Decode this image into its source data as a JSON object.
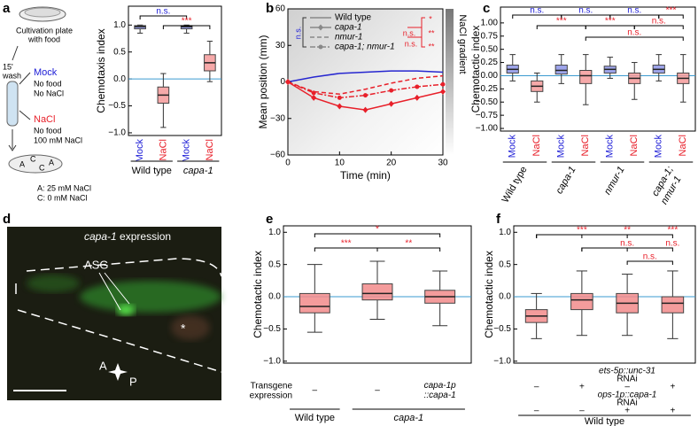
{
  "panel_labels": [
    "a",
    "b",
    "c",
    "d",
    "e",
    "f"
  ],
  "diagram_a": {
    "plate_label": [
      "Cultivation plate",
      "with food"
    ],
    "time": "15'",
    "wash": "wash",
    "mock_title": "Mock",
    "mock_lines": [
      "No food",
      "No NaCl"
    ],
    "nacl_title": "NaCl",
    "nacl_lines": [
      "No food",
      "100 mM NaCl"
    ],
    "plate_marks": [
      "A",
      "C",
      "C",
      "A"
    ],
    "legend": [
      "A: 25 mM NaCl",
      "C:   0 mM NaCl"
    ]
  },
  "image_d": {
    "title_gene": "capa-1",
    "title_rest": "expression",
    "neuron": "ASG",
    "asterisk": "*",
    "axis_a": "A",
    "axis_p": "P"
  },
  "chart_data": [
    {
      "type": "box",
      "ylabel": "Chemotaxis index",
      "categories": [
        "Mock",
        "NaCl",
        "Mock",
        "NaCl"
      ],
      "category_colors": [
        "#1c1cd6",
        "#e8202a",
        "#1c1cd6",
        "#e8202a"
      ],
      "box_colors": [
        "#8d95e8",
        "#f59a9a",
        "#8d95e8",
        "#f59a9a"
      ],
      "median": [
        0.97,
        -0.3,
        0.97,
        0.3
      ],
      "q1": [
        0.93,
        -0.45,
        0.93,
        0.15
      ],
      "q3": [
        0.99,
        -0.15,
        0.99,
        0.45
      ],
      "whisker_low": [
        0.85,
        -0.9,
        0.85,
        -0.05
      ],
      "whisker_high": [
        1.0,
        0.1,
        1.0,
        0.7
      ],
      "ylim": [
        -1.05,
        1.35
      ],
      "yticks": [
        {
          "value": -1,
          "label": "−1.0"
        },
        {
          "value": -0.5,
          "label": "−0.5"
        },
        {
          "value": 0,
          "label": "0.0"
        },
        {
          "value": 0.5,
          "label": "0.5"
        },
        {
          "value": 1,
          "label": "1.0"
        }
      ],
      "reference_line": 0,
      "reference_color": "#3b9bd0",
      "groups": [
        [
          "Wild type"
        ],
        [
          "capa-1"
        ]
      ],
      "significance": [
        {
          "text": "n.s.",
          "color": "#1c1cd6"
        },
        {
          "text": "***",
          "color": "#e8202a"
        }
      ]
    },
    {
      "type": "line",
      "ylabel": "Mean position (mm)",
      "xlabel": "Time (min)",
      "x": [
        0,
        5,
        10,
        15,
        20,
        25,
        30
      ],
      "series": [
        {
          "name": "Wild type",
          "color": "#2727d0",
          "legend_color": "#888888",
          "dash": "solid",
          "marker": "none",
          "values": [
            0,
            4,
            7,
            8,
            9,
            9,
            8
          ]
        },
        {
          "name": "capa-1",
          "color": "#e8202a",
          "legend_color": "#888888",
          "dash": "solid",
          "marker": "diamond",
          "values": [
            0,
            -13,
            -20,
            -23,
            -18,
            -13,
            -8
          ]
        },
        {
          "name": "nmur-1",
          "color": "#e8202a",
          "legend_color": "#888888",
          "dash": "dashed",
          "marker": "none",
          "values": [
            0,
            -8,
            -10,
            -6,
            -1,
            3,
            5
          ]
        },
        {
          "name": "capa-1; nmur-1",
          "color": "#e8202a",
          "legend_color": "#888888",
          "dash": "dashdot",
          "marker": "circle",
          "values": [
            0,
            -9,
            -13,
            -11,
            -7,
            -4,
            -2
          ]
        }
      ],
      "xlim": [
        0,
        30
      ],
      "xticks": [
        0,
        10,
        20,
        30
      ],
      "ylim": [
        -60,
        60
      ],
      "yticks": [
        {
          "value": -60,
          "label": "−60"
        },
        {
          "value": -30,
          "label": "−30"
        },
        0,
        30,
        60
      ],
      "gradient_label": "NaCl gradient",
      "significance": [
        {
          "text": "n.s.",
          "color": "#1c1cd6"
        },
        {
          "text": "*",
          "color": "#e8202a"
        },
        {
          "text": "**",
          "color": "#e8202a"
        },
        {
          "text": "**",
          "color": "#e8202a"
        },
        {
          "text": "n.s.",
          "color": "#e8202a"
        },
        {
          "text": "n.s.",
          "color": "#e8202a"
        }
      ]
    },
    {
      "type": "box",
      "ylabel": "Chemotactic index",
      "categories": [
        "Mock",
        "NaCl",
        "Mock",
        "NaCl",
        "Mock",
        "NaCl",
        "Mock",
        "NaCl"
      ],
      "category_colors": [
        "#1c1cd6",
        "#e8202a",
        "#1c1cd6",
        "#e8202a",
        "#1c1cd6",
        "#e8202a",
        "#1c1cd6",
        "#e8202a"
      ],
      "box_colors": [
        "#8d95e8",
        "#f59a9a",
        "#8d95e8",
        "#f59a9a",
        "#8d95e8",
        "#f59a9a",
        "#8d95e8",
        "#f59a9a"
      ],
      "median": [
        0.12,
        -0.2,
        0.1,
        0,
        0.12,
        -0.05,
        0.12,
        -0.05
      ],
      "q1": [
        0.05,
        -0.3,
        0.03,
        -0.15,
        0.05,
        -0.15,
        0.05,
        -0.15
      ],
      "q3": [
        0.2,
        -0.1,
        0.2,
        0.1,
        0.18,
        0.05,
        0.2,
        0.05
      ],
      "whisker_low": [
        -0.1,
        -0.5,
        -0.15,
        -0.55,
        -0.05,
        -0.45,
        -0.1,
        -0.5
      ],
      "whisker_high": [
        0.4,
        0.05,
        0.4,
        0.4,
        0.35,
        0.25,
        0.4,
        0.4
      ],
      "ylim": [
        -1.05,
        1.3
      ],
      "yticks": [
        {
          "value": -1,
          "label": "−1.00"
        },
        {
          "value": -0.75,
          "label": "−0.75"
        },
        {
          "value": -0.5,
          "label": "−0.50"
        },
        {
          "value": -0.25,
          "label": "−0.25"
        },
        {
          "value": 0,
          "label": "0.00"
        },
        {
          "value": 0.25,
          "label": "0.25"
        },
        {
          "value": 0.5,
          "label": "0.50"
        },
        {
          "value": 0.75,
          "label": "0.75"
        },
        {
          "value": 1,
          "label": "1.00"
        }
      ],
      "reference_line": 0,
      "reference_color": "#3b9bd0",
      "groups": [
        [
          "Wild type"
        ],
        [
          "capa-1"
        ],
        [
          "nmur-1"
        ],
        [
          "capa-1;",
          "nmur-1"
        ]
      ],
      "significance": [
        {
          "text": "n.s.",
          "color": "#1c1cd6"
        },
        {
          "text": "n.s.",
          "color": "#1c1cd6"
        },
        {
          "text": "n.s.",
          "color": "#1c1cd6"
        },
        {
          "text": "***",
          "color": "#e8202a"
        },
        {
          "text": "***",
          "color": "#e8202a"
        },
        {
          "text": "***",
          "color": "#e8202a"
        },
        {
          "text": "n.s.",
          "color": "#e8202a"
        },
        {
          "text": "n.s.",
          "color": "#e8202a"
        }
      ]
    },
    {
      "type": "box",
      "ylabel": "Chemotactic index",
      "categories": [
        null,
        null,
        null
      ],
      "box_colors": [
        "#f28b8b",
        "#f28b8b",
        "#f28b8b"
      ],
      "median": [
        -0.15,
        0.05,
        0
      ],
      "q1": [
        -0.25,
        -0.05,
        -0.1
      ],
      "q3": [
        0.05,
        0.2,
        0.1
      ],
      "whisker_low": [
        -0.55,
        -0.35,
        -0.45
      ],
      "whisker_high": [
        0.5,
        0.55,
        0.4
      ],
      "ylim": [
        -1.03,
        1.1
      ],
      "yticks": [
        {
          "value": -1,
          "label": "−1.0"
        },
        {
          "value": -0.5,
          "label": "−0.5"
        },
        {
          "value": 0,
          "label": "0.0"
        },
        {
          "value": 0.5,
          "label": "0.5"
        },
        {
          "value": 1,
          "label": "1.0"
        }
      ],
      "reference_line": 0,
      "reference_color": "#3b9bd0",
      "rows": [
        {
          "label": [
            "Transgene",
            "expression"
          ],
          "values": [
            [
              "–"
            ],
            [
              "–"
            ],
            [
              "capa-1p",
              "::capa-1"
            ]
          ]
        }
      ],
      "groups": [
        [
          "Wild type"
        ],
        [
          "capa-1"
        ]
      ],
      "significance": [
        {
          "text": "*",
          "color": "#e8202a"
        },
        {
          "text": "***",
          "color": "#e8202a"
        },
        {
          "text": "**",
          "color": "#e8202a"
        }
      ]
    },
    {
      "type": "box",
      "ylabel": "Chemotactic index",
      "categories": [
        null,
        null,
        null,
        null
      ],
      "box_colors": [
        "#f28b8b",
        "#f28b8b",
        "#f28b8b",
        "#f28b8b"
      ],
      "median": [
        -0.3,
        -0.05,
        -0.1,
        -0.1
      ],
      "q1": [
        -0.4,
        -0.2,
        -0.25,
        -0.25
      ],
      "q3": [
        -0.2,
        0.05,
        0.05,
        0
      ],
      "whisker_low": [
        -0.65,
        -0.6,
        -0.6,
        -0.65
      ],
      "whisker_high": [
        0.05,
        0.4,
        0.35,
        0.4
      ],
      "ylim": [
        -1.03,
        1.1
      ],
      "yticks": [
        {
          "value": -1,
          "label": "−1.0"
        },
        {
          "value": -0.5,
          "label": "−0.5"
        },
        {
          "value": 0,
          "label": "0.0"
        },
        {
          "value": 0.5,
          "label": "0.5"
        },
        {
          "value": 1,
          "label": "1.0"
        }
      ],
      "reference_line": 0,
      "reference_color": "#3b9bd0",
      "rows": [
        {
          "label": [
            "ets-5p::unc-31",
            "RNAi"
          ],
          "values": [
            [
              "–"
            ],
            [
              "+"
            ],
            [
              "–"
            ],
            [
              "+"
            ]
          ]
        },
        {
          "label": [
            "ops-1p::capa-1",
            "RNAi"
          ],
          "values": [
            [
              "–"
            ],
            [
              "–"
            ],
            [
              "+"
            ],
            [
              "+"
            ]
          ]
        }
      ],
      "groups": [
        [
          "Wild type"
        ]
      ],
      "significance": [
        {
          "text": "***",
          "color": "#e8202a"
        },
        {
          "text": "**",
          "color": "#e8202a"
        },
        {
          "text": "***",
          "color": "#e8202a"
        },
        {
          "text": "n.s.",
          "color": "#e8202a"
        },
        {
          "text": "n.s.",
          "color": "#e8202a"
        },
        {
          "text": "n.s.",
          "color": "#e8202a"
        }
      ]
    }
  ]
}
